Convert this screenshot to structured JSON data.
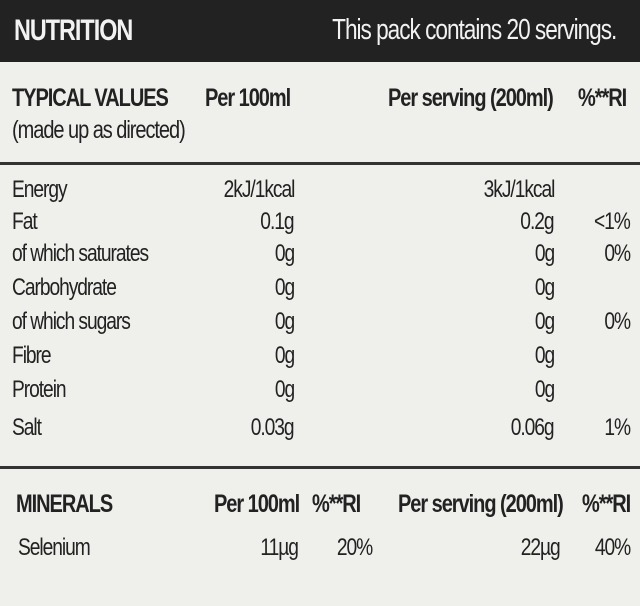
{
  "header": {
    "title": "NUTRITION",
    "servings": "This pack contains 20 servings."
  },
  "typical": {
    "heading_line1": "TYPICAL VALUES",
    "heading_line2": "(made up as directed)",
    "col_per100": "Per 100ml",
    "col_serving": "Per serving (200ml)",
    "col_ri": "%**RI",
    "rows": [
      {
        "label": "Energy",
        "per100": "2kJ/1kcal",
        "serving": "3kJ/1kcal",
        "ri": ""
      },
      {
        "label": "Fat",
        "per100": "0.1g",
        "serving": "0.2g",
        "ri": "<1%"
      },
      {
        "label": "of which saturates",
        "per100": "0g",
        "serving": "0g",
        "ri": "0%"
      },
      {
        "label": "Carbohydrate",
        "per100": "0g",
        "serving": "0g",
        "ri": ""
      },
      {
        "label": "of which sugars",
        "per100": "0g",
        "serving": "0g",
        "ri": "0%"
      },
      {
        "label": "Fibre",
        "per100": "0g",
        "serving": "0g",
        "ri": ""
      },
      {
        "label": "Protein",
        "per100": "0g",
        "serving": "0g",
        "ri": ""
      },
      {
        "label": "Salt",
        "per100": "0.03g",
        "serving": "0.06g",
        "ri": "1%"
      }
    ]
  },
  "minerals": {
    "heading": "MINERALS",
    "col_per100": "Per 100ml",
    "col_ri1": "%**RI",
    "col_serving": "Per serving (200ml)",
    "col_ri2": "%**RI",
    "rows": [
      {
        "label": "Selenium",
        "per100": "11µg",
        "ri1": "20%",
        "serving": "22µg",
        "ri2": "40%"
      }
    ]
  }
}
